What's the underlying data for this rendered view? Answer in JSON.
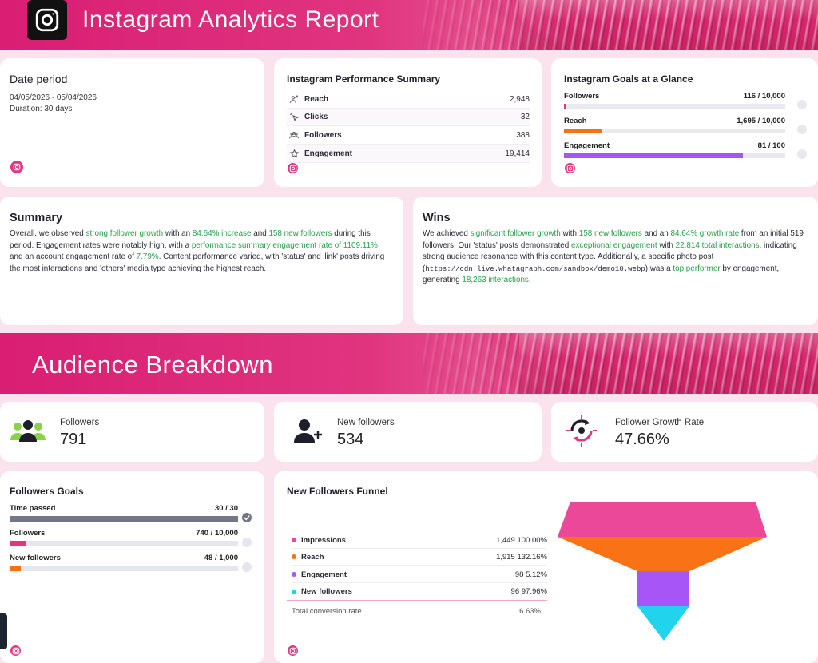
{
  "header": {
    "title": "Instagram Analytics Report"
  },
  "date_card": {
    "title": "Date period",
    "range": "04/05/2026 - 05/04/2026",
    "duration": "Duration:  30 days"
  },
  "performance": {
    "title": "Instagram Performance Summary",
    "rows": [
      {
        "label": "Reach",
        "value": "2,948"
      },
      {
        "label": "Clicks",
        "value": "32"
      },
      {
        "label": "Followers",
        "value": "388"
      },
      {
        "label": "Engagement",
        "value": "19,414"
      }
    ]
  },
  "goals": {
    "title": "Instagram Goals at a Glance",
    "items": [
      {
        "label": "Followers",
        "value": "116 / 10,000",
        "progress": 0.0116,
        "color": "#e23583"
      },
      {
        "label": "Reach",
        "value": "1,695 / 10,000",
        "progress": 0.1695,
        "color": "#f47316"
      },
      {
        "label": "Engagement",
        "value": "81 / 100",
        "progress": 0.81,
        "color": "#a855f7"
      }
    ]
  },
  "summary": {
    "title": "Summary",
    "p1": "Overall, we observed ",
    "h1": "strong follower growth",
    "p2": " with an ",
    "h2": "84.64% increase",
    "p3": " and ",
    "h3": "158 new followers",
    "p4": " during this period. Engagement rates were notably high, with a ",
    "h4": "performance summary engagement rate of 1109.11%",
    "p5": " and an account engagement rate of ",
    "h5": "7.79%",
    "p6": ". Content performance varied, with 'status' and 'link' posts driving the most interactions and 'others' media type achieving the highest reach."
  },
  "wins": {
    "title": "Wins",
    "p1": "We achieved ",
    "h1": "significant follower growth",
    "p2": " with ",
    "h2": "158 new followers",
    "p3": " and an ",
    "h3": "84.64% growth rate",
    "p4": " from an initial 519 followers. Our 'status' posts demonstrated ",
    "h4": "exceptional engagement",
    "p5": " with ",
    "h5": "22,814 total interactions",
    "p6": ", indicating strong audience resonance with this content type. Additionally, a specific photo post (",
    "url": "https://cdn.live.whatagraph.com/sandbox/demo10.webp",
    "p7": ") was a ",
    "h6": "top performer",
    "p8": " by engagement, generating ",
    "h7": "18,263 interactions",
    "p9": "."
  },
  "audience": {
    "title": "Audience Breakdown"
  },
  "kpis": [
    {
      "label": "Followers",
      "value": "791"
    },
    {
      "label": "New followers",
      "value": "534"
    },
    {
      "label": "Follower Growth Rate",
      "value": "47.66%"
    }
  ],
  "followers_goals": {
    "title": "Followers Goals",
    "items": [
      {
        "label": "Time passed",
        "value": "30 / 30",
        "progress": 1.0,
        "color": "#737684",
        "done": true
      },
      {
        "label": "Followers",
        "value": "740 / 10,000",
        "progress": 0.074,
        "color": "#e23583",
        "done": false
      },
      {
        "label": "New followers",
        "value": "48 / 1,000",
        "progress": 0.048,
        "color": "#f47316",
        "done": false
      }
    ]
  },
  "funnel": {
    "title": "New Followers Funnel",
    "rows": [
      {
        "label": "Impressions",
        "value": "1,449",
        "pct": "100.00%",
        "color": "#ec4899"
      },
      {
        "label": "Reach",
        "value": "1,915",
        "pct": "132.16%",
        "color": "#f97316"
      },
      {
        "label": "Engagement",
        "value": "98",
        "pct": "5.12%",
        "color": "#a855f7"
      },
      {
        "label": "New followers",
        "value": "96",
        "pct": "97.96%",
        "color": "#22d3ee"
      }
    ],
    "total_label": "Total conversion rate",
    "total_value": "6.63%"
  }
}
